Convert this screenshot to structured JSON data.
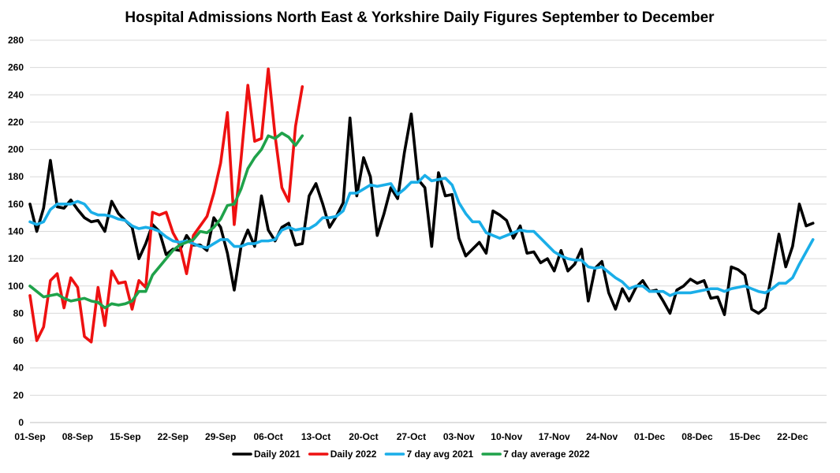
{
  "chart_data": {
    "type": "line",
    "title": "Hospital Admissions North East & Yorkshire Daily Figures September to December",
    "xlabel": "",
    "ylabel": "",
    "ylim": [
      0,
      280
    ],
    "y_ticks": [
      0,
      20,
      40,
      60,
      80,
      100,
      120,
      140,
      160,
      180,
      200,
      220,
      240,
      260,
      280
    ],
    "grid": true,
    "legend_position": "bottom",
    "x_tick_labels": [
      "01-Sep",
      "08-Sep",
      "15-Sep",
      "22-Sep",
      "29-Sep",
      "06-Oct",
      "13-Oct",
      "20-Oct",
      "27-Oct",
      "03-Nov",
      "10-Nov",
      "17-Nov",
      "24-Nov",
      "01-Dec",
      "08-Dec",
      "15-Dec",
      "22-Dec"
    ],
    "x_tick_interval_days": 7,
    "total_days": 118,
    "series": [
      {
        "name": "Daily 2021",
        "color": "#000000",
        "values": [
          160,
          140,
          157,
          192,
          158,
          157,
          163,
          156,
          150,
          147,
          148,
          140,
          162,
          153,
          148,
          143,
          120,
          131,
          145,
          140,
          123,
          127,
          126,
          137,
          130,
          130,
          126,
          150,
          143,
          124,
          97,
          129,
          141,
          129,
          166,
          141,
          133,
          143,
          146,
          130,
          131,
          166,
          175,
          160,
          143,
          151,
          161,
          223,
          166,
          194,
          180,
          137,
          153,
          172,
          164,
          198,
          226,
          178,
          172,
          129,
          183,
          166,
          167,
          135,
          122,
          127,
          132,
          124,
          155,
          152,
          148,
          135,
          144,
          124,
          125,
          117,
          120,
          111,
          126,
          111,
          116,
          127,
          89,
          113,
          118,
          95,
          83,
          98,
          89,
          99,
          104,
          96,
          97,
          89,
          80,
          97,
          100,
          105,
          102,
          104,
          91,
          92,
          79,
          114,
          112,
          108,
          83,
          80,
          84,
          110,
          138,
          114,
          129,
          160,
          144,
          146
        ],
        "visible_values": []
      },
      {
        "name": "Daily 2022",
        "color": "#ee1111",
        "values": [
          93,
          60,
          70,
          104,
          109,
          84,
          106,
          99,
          63,
          59,
          99,
          71,
          111,
          102,
          103,
          83,
          104,
          99,
          154,
          152,
          154,
          139,
          130,
          109,
          137,
          144,
          151,
          168,
          190,
          227,
          145,
          193,
          247,
          206,
          208,
          259,
          210,
          172,
          162,
          217,
          246
        ]
      },
      {
        "name": "7 day avg 2021",
        "color": "#1aaee8",
        "values": [
          147,
          145,
          147,
          156,
          160,
          160,
          160,
          162,
          160,
          154,
          152,
          152,
          151,
          149,
          148,
          144,
          142,
          143,
          142,
          140,
          136,
          133,
          132,
          133,
          131,
          129,
          128,
          131,
          134,
          134,
          129,
          129,
          131,
          131,
          133,
          133,
          134,
          141,
          143,
          141,
          142,
          142,
          145,
          150,
          150,
          151,
          155,
          168,
          168,
          171,
          174,
          173,
          174,
          175,
          167,
          171,
          176,
          176,
          181,
          177,
          178,
          179,
          174,
          161,
          153,
          147,
          147,
          139,
          137,
          135,
          137,
          139,
          141,
          140,
          140,
          135,
          130,
          125,
          122,
          120,
          119,
          119,
          114,
          113,
          114,
          110,
          106,
          103,
          98,
          100,
          100,
          96,
          96,
          96,
          93,
          95,
          95,
          95,
          96,
          97,
          98,
          98,
          96,
          98,
          99,
          100,
          98,
          96,
          95,
          98,
          102,
          102,
          106,
          116,
          125,
          134
        ]
      },
      {
        "name": "7 day average 2022",
        "color": "#1fa24a",
        "values": [
          100,
          96,
          92,
          93,
          94,
          91,
          89,
          90,
          91,
          89,
          88,
          84,
          87,
          86,
          87,
          89,
          96,
          96,
          108,
          114,
          120,
          126,
          130,
          132,
          134,
          140,
          139,
          143,
          149,
          159,
          160,
          171,
          186,
          194,
          200,
          210,
          208,
          212,
          209,
          203,
          210
        ]
      }
    ]
  }
}
